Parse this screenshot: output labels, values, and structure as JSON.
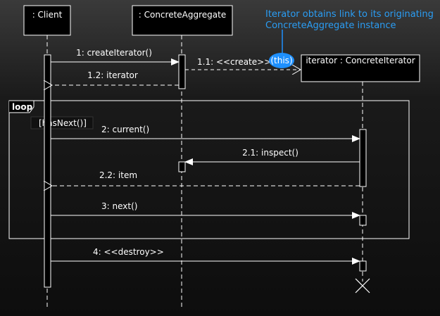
{
  "lifelines": {
    "client": ": Client",
    "aggregate": ": ConcreteAggregate",
    "iterator": "iterator : ConcreteIterator"
  },
  "messages": {
    "m1": "1: createIterator()",
    "m1_1": "1.1: <<create>>",
    "m1_1_this": "(this)",
    "m1_2": "1.2: iterator",
    "m2": "2: current()",
    "m2_1": "2.1: inspect()",
    "m2_2": "2.2: item",
    "m3": "3: next()",
    "m4": "4: <<destroy>>"
  },
  "fragment": {
    "operator": "loop",
    "guard": "[hasNext()]"
  },
  "note": {
    "line1": "Iterator obtains link to its originating",
    "line2": "ConcreteAggregate instance"
  },
  "colors": {
    "line": "#ffffff",
    "note_text": "#2a9df4",
    "note_bubble": "#1e90ff"
  }
}
